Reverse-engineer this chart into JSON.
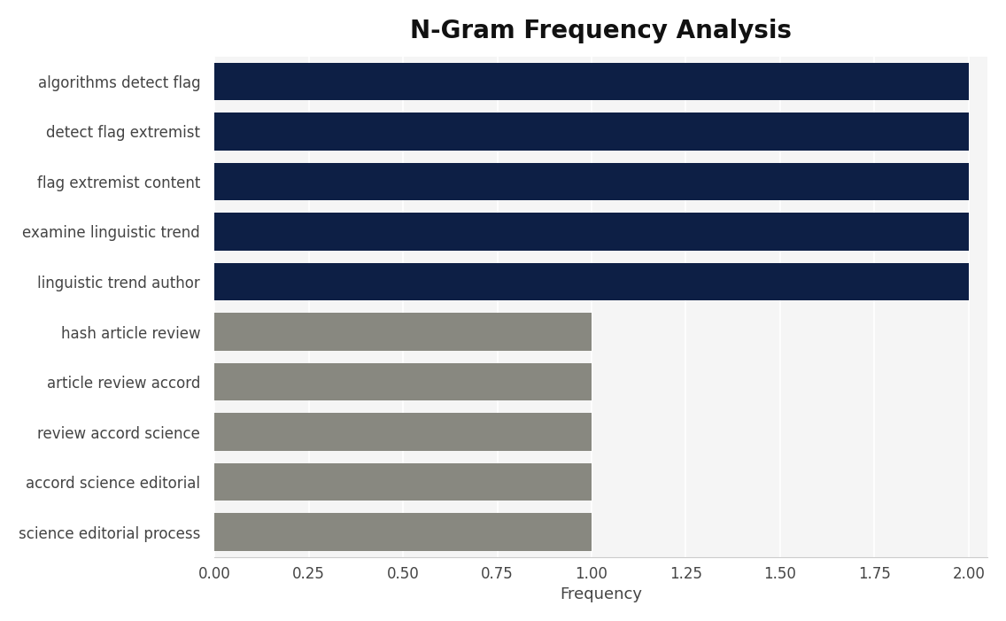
{
  "title": "N-Gram Frequency Analysis",
  "categories": [
    "science editorial process",
    "accord science editorial",
    "review accord science",
    "article review accord",
    "hash article review",
    "linguistic trend author",
    "examine linguistic trend",
    "flag extremist content",
    "detect flag extremist",
    "algorithms detect flag"
  ],
  "values": [
    1,
    1,
    1,
    1,
    1,
    2,
    2,
    2,
    2,
    2
  ],
  "colors": [
    "#888880",
    "#888880",
    "#888880",
    "#888880",
    "#888880",
    "#0d1f45",
    "#0d1f45",
    "#0d1f45",
    "#0d1f45",
    "#0d1f45"
  ],
  "xlabel": "Frequency",
  "xlim": [
    0,
    2.05
  ],
  "xticks": [
    0.0,
    0.25,
    0.5,
    0.75,
    1.0,
    1.25,
    1.5,
    1.75,
    2.0
  ],
  "xtick_labels": [
    "0.00",
    "0.25",
    "0.50",
    "0.75",
    "1.00",
    "1.25",
    "1.50",
    "1.75",
    "2.00"
  ],
  "plot_bg_color": "#f5f5f5",
  "fig_bg_color": "#ffffff",
  "bar_height": 0.75,
  "title_fontsize": 20,
  "label_fontsize": 12,
  "tick_fontsize": 12
}
